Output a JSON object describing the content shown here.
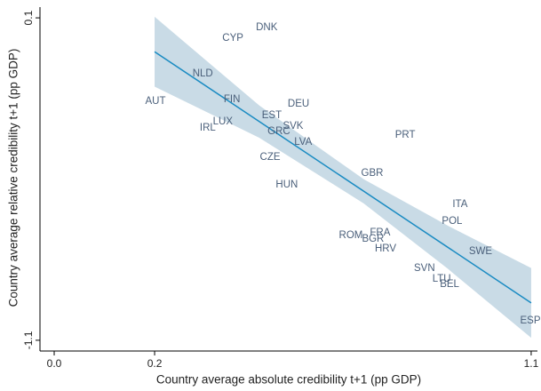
{
  "chart_data": {
    "type": "scatter",
    "x_label": "Country average absolute credibility t+1 (pp GDP)",
    "y_label": "Country average relative credibility t+1 (pp GDP)",
    "xlim": [
      -0.074,
      1.115
    ],
    "ylim": [
      -1.14,
      0.14
    ],
    "xticks": [
      {
        "value": -0.04,
        "label": "0.0"
      },
      0.2,
      1.1
    ],
    "yticks": [
      0.1,
      -1.1
    ],
    "x": [
      0.202,
      0.387,
      0.468,
      0.315,
      0.385,
      0.544,
      0.48,
      0.531,
      0.363,
      0.327,
      0.497,
      0.555,
      0.799,
      0.476,
      0.72,
      0.516,
      0.93,
      0.911,
      0.669,
      0.739,
      0.722,
      0.752,
      0.979,
      0.845,
      0.886,
      0.905,
      1.098
    ],
    "series": [
      {
        "color": "#4a5f7a",
        "labels": [
          "AUT",
          "CYP",
          "DNK",
          "NLD",
          "FIN",
          "DEU",
          "EST",
          "SVK",
          "LUX",
          "IRL",
          "GRC",
          "LVA",
          "PRT",
          "CZE",
          "GBR",
          "HUN",
          "ITA",
          "POL",
          "ROM",
          "FRA",
          "BGR",
          "HRV",
          "SWE",
          "SVN",
          "LTU",
          "BEL",
          "ESP"
        ],
        "values": [
          -0.211,
          0.024,
          0.064,
          -0.108,
          -0.204,
          -0.221,
          -0.264,
          -0.303,
          -0.287,
          -0.31,
          -0.323,
          -0.363,
          -0.336,
          -0.419,
          -0.479,
          -0.521,
          -0.594,
          -0.657,
          -0.71,
          -0.7,
          -0.723,
          -0.76,
          -0.769,
          -0.832,
          -0.872,
          -0.892,
          -1.027
        ]
      }
    ],
    "band": {
      "color": "#c9dbe6",
      "x": [
        0.2,
        0.45,
        0.7,
        0.9,
        1.1
      ],
      "upper": [
        0.104,
        -0.226,
        -0.501,
        -0.673,
        -0.831
      ],
      "lower": [
        -0.156,
        -0.346,
        -0.591,
        -0.833,
        -1.091
      ]
    },
    "fit": {
      "color": "#1a8bc2",
      "x": [
        0.2,
        1.1
      ],
      "values": [
        -0.026,
        -0.961
      ]
    }
  }
}
